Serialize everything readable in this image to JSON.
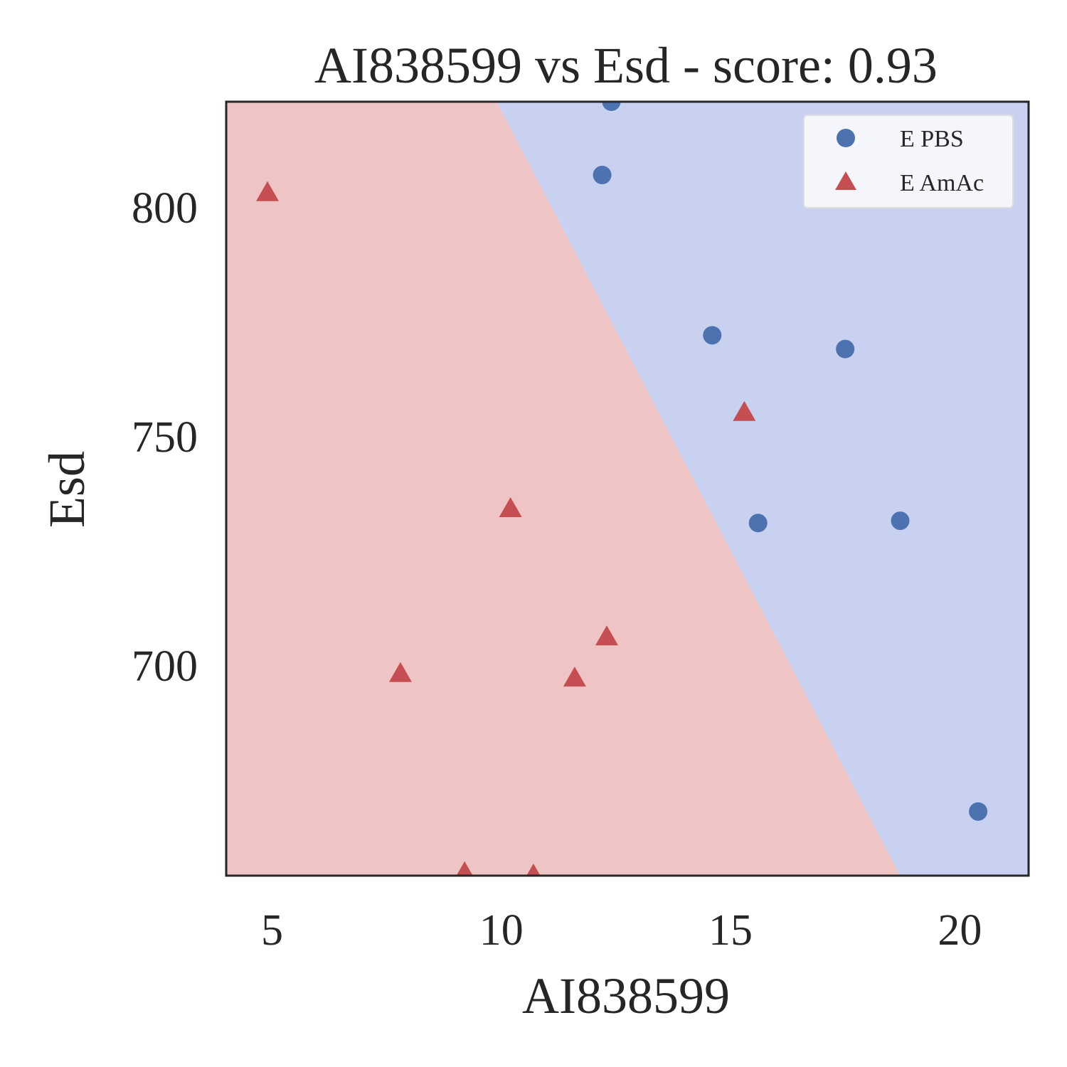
{
  "chart_data": {
    "type": "scatter",
    "title": "AI838599 vs Esd - score: 0.93",
    "xlabel": "AI838599",
    "ylabel": "Esd",
    "xlim": [
      4.0,
      21.5
    ],
    "ylim": [
      654,
      823
    ],
    "xticks": [
      5,
      10,
      15,
      20
    ],
    "yticks": [
      700,
      750,
      800
    ],
    "grid": false,
    "legend_position": "top-right",
    "decision_boundary": {
      "points": [
        [
          9.9,
          823
        ],
        [
          18.7,
          654
        ]
      ],
      "regions": [
        {
          "class": "E AmAc",
          "side": "left",
          "color": "#eec4c4"
        },
        {
          "class": "E PBS",
          "side": "right",
          "color": "#c9d1f1"
        }
      ]
    },
    "series": [
      {
        "name": "E PBS",
        "marker": "circle",
        "color": "#4c72b0",
        "points": [
          [
            12.4,
            823
          ],
          [
            12.2,
            807
          ],
          [
            14.6,
            772
          ],
          [
            17.5,
            769
          ],
          [
            15.6,
            731
          ],
          [
            18.7,
            731.5
          ],
          [
            20.4,
            668
          ]
        ]
      },
      {
        "name": "E AmAc",
        "marker": "triangle",
        "color": "#c44e52",
        "points": [
          [
            4.9,
            803
          ],
          [
            15.3,
            755
          ],
          [
            10.2,
            734
          ],
          [
            12.3,
            706
          ],
          [
            7.8,
            698
          ],
          [
            11.6,
            697
          ],
          [
            9.2,
            654.5
          ],
          [
            10.7,
            654
          ]
        ]
      }
    ]
  }
}
